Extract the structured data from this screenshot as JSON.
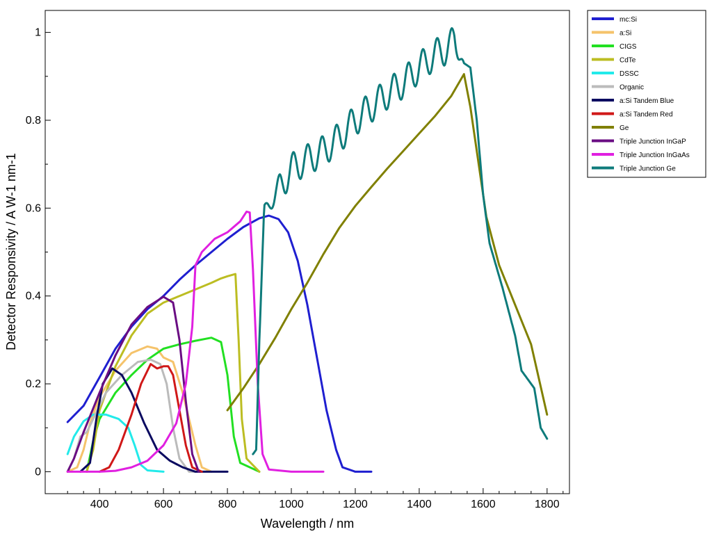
{
  "chart_data": {
    "type": "line",
    "title": "",
    "xlabel": "Wavelength / nm",
    "ylabel": "Detector Responsivity / A W-1 nm-1",
    "xlim": [
      230,
      1870
    ],
    "ylim": [
      -0.05,
      1.05
    ],
    "xticks": [
      {
        "value": 400,
        "label": "400"
      },
      {
        "value": 600,
        "label": "600"
      },
      {
        "value": 800,
        "label": "800"
      },
      {
        "value": 1000,
        "label": "1000"
      },
      {
        "value": 1200,
        "label": "1200"
      },
      {
        "value": 1400,
        "label": "1400"
      },
      {
        "value": 1600,
        "label": "1600"
      },
      {
        "value": 1800,
        "label": "1800"
      }
    ],
    "xminor": [
      300,
      350,
      450,
      500,
      550,
      650,
      700,
      750,
      850,
      900,
      950,
      1050,
      1100,
      1150,
      1250,
      1300,
      1350,
      1450,
      1500,
      1550,
      1650,
      1700,
      1750,
      1850
    ],
    "yticks": [
      {
        "value": 0,
        "label": "0"
      },
      {
        "value": 0.2,
        "label": "0.2"
      },
      {
        "value": 0.4,
        "label": "0.4"
      },
      {
        "value": 0.6,
        "label": "0.6"
      },
      {
        "value": 0.8,
        "label": "0.8"
      },
      {
        "value": 1,
        "label": "1"
      }
    ],
    "yminor": [
      0.1,
      0.3,
      0.5,
      0.7,
      0.9
    ],
    "grid": false,
    "legend_position": "outside-right-top",
    "series": [
      {
        "name": "mc:Si",
        "color": "#1f1fd0",
        "points": [
          [
            300,
            0.113
          ],
          [
            350,
            0.15
          ],
          [
            400,
            0.215
          ],
          [
            450,
            0.28
          ],
          [
            500,
            0.33
          ],
          [
            550,
            0.37
          ],
          [
            600,
            0.4
          ],
          [
            650,
            0.437
          ],
          [
            700,
            0.47
          ],
          [
            750,
            0.5
          ],
          [
            800,
            0.53
          ],
          [
            850,
            0.557
          ],
          [
            900,
            0.577
          ],
          [
            930,
            0.583
          ],
          [
            960,
            0.575
          ],
          [
            990,
            0.545
          ],
          [
            1020,
            0.48
          ],
          [
            1050,
            0.38
          ],
          [
            1080,
            0.26
          ],
          [
            1110,
            0.14
          ],
          [
            1140,
            0.05
          ],
          [
            1160,
            0.01
          ],
          [
            1200,
            0.0
          ],
          [
            1250,
            0.0
          ]
        ]
      },
      {
        "name": "a:Si",
        "color": "#f5c36b",
        "points": [
          [
            300,
            0.0
          ],
          [
            330,
            0.01
          ],
          [
            350,
            0.05
          ],
          [
            370,
            0.11
          ],
          [
            400,
            0.17
          ],
          [
            450,
            0.23
          ],
          [
            500,
            0.27
          ],
          [
            550,
            0.285
          ],
          [
            580,
            0.28
          ],
          [
            600,
            0.26
          ],
          [
            630,
            0.25
          ],
          [
            660,
            0.18
          ],
          [
            700,
            0.06
          ],
          [
            720,
            0.01
          ],
          [
            750,
            0.0
          ]
        ]
      },
      {
        "name": "CIGS",
        "color": "#22e022",
        "points": [
          [
            360,
            0.0
          ],
          [
            380,
            0.07
          ],
          [
            400,
            0.12
          ],
          [
            450,
            0.18
          ],
          [
            500,
            0.22
          ],
          [
            550,
            0.255
          ],
          [
            600,
            0.28
          ],
          [
            650,
            0.29
          ],
          [
            700,
            0.298
          ],
          [
            750,
            0.305
          ],
          [
            780,
            0.295
          ],
          [
            800,
            0.22
          ],
          [
            820,
            0.08
          ],
          [
            840,
            0.02
          ],
          [
            900,
            0.0
          ]
        ]
      },
      {
        "name": "CdTe",
        "color": "#bcbd22",
        "points": [
          [
            360,
            0.0
          ],
          [
            380,
            0.05
          ],
          [
            400,
            0.14
          ],
          [
            450,
            0.24
          ],
          [
            500,
            0.31
          ],
          [
            550,
            0.36
          ],
          [
            600,
            0.385
          ],
          [
            650,
            0.4
          ],
          [
            700,
            0.415
          ],
          [
            750,
            0.43
          ],
          [
            780,
            0.44
          ],
          [
            800,
            0.445
          ],
          [
            825,
            0.45
          ],
          [
            835,
            0.3
          ],
          [
            845,
            0.12
          ],
          [
            860,
            0.03
          ],
          [
            900,
            0.0
          ]
        ]
      },
      {
        "name": "DSSC",
        "color": "#22eaea",
        "points": [
          [
            300,
            0.04
          ],
          [
            320,
            0.08
          ],
          [
            350,
            0.115
          ],
          [
            380,
            0.13
          ],
          [
            420,
            0.13
          ],
          [
            460,
            0.12
          ],
          [
            490,
            0.1
          ],
          [
            510,
            0.06
          ],
          [
            530,
            0.015
          ],
          [
            550,
            0.003
          ],
          [
            600,
            0.0
          ]
        ]
      },
      {
        "name": "Organic",
        "color": "#bbbbbb",
        "points": [
          [
            300,
            0.0
          ],
          [
            320,
            0.03
          ],
          [
            340,
            0.08
          ],
          [
            360,
            0.09
          ],
          [
            380,
            0.12
          ],
          [
            420,
            0.18
          ],
          [
            470,
            0.22
          ],
          [
            520,
            0.25
          ],
          [
            560,
            0.255
          ],
          [
            590,
            0.245
          ],
          [
            610,
            0.2
          ],
          [
            630,
            0.1
          ],
          [
            650,
            0.03
          ],
          [
            680,
            0.0
          ],
          [
            700,
            0.0
          ]
        ]
      },
      {
        "name": "a:Si Tandem Blue",
        "color": "#0a0a60",
        "points": [
          [
            340,
            0.0
          ],
          [
            370,
            0.02
          ],
          [
            390,
            0.12
          ],
          [
            410,
            0.2
          ],
          [
            440,
            0.235
          ],
          [
            470,
            0.22
          ],
          [
            500,
            0.18
          ],
          [
            540,
            0.11
          ],
          [
            580,
            0.05
          ],
          [
            620,
            0.025
          ],
          [
            660,
            0.01
          ],
          [
            700,
            0.0
          ],
          [
            800,
            0.0
          ]
        ]
      },
      {
        "name": "a:Si Tandem Red",
        "color": "#d01818",
        "points": [
          [
            400,
            0.0
          ],
          [
            430,
            0.01
          ],
          [
            460,
            0.05
          ],
          [
            500,
            0.13
          ],
          [
            530,
            0.2
          ],
          [
            560,
            0.245
          ],
          [
            580,
            0.235
          ],
          [
            600,
            0.24
          ],
          [
            615,
            0.24
          ],
          [
            630,
            0.22
          ],
          [
            650,
            0.14
          ],
          [
            670,
            0.06
          ],
          [
            690,
            0.01
          ],
          [
            720,
            0.0
          ]
        ]
      },
      {
        "name": "Ge",
        "color": "#808000",
        "points": [
          [
            800,
            0.14
          ],
          [
            850,
            0.19
          ],
          [
            900,
            0.245
          ],
          [
            950,
            0.305
          ],
          [
            1000,
            0.37
          ],
          [
            1050,
            0.43
          ],
          [
            1100,
            0.495
          ],
          [
            1150,
            0.555
          ],
          [
            1200,
            0.605
          ],
          [
            1250,
            0.648
          ],
          [
            1300,
            0.69
          ],
          [
            1350,
            0.73
          ],
          [
            1400,
            0.77
          ],
          [
            1450,
            0.81
          ],
          [
            1500,
            0.855
          ],
          [
            1540,
            0.905
          ],
          [
            1560,
            0.83
          ],
          [
            1580,
            0.73
          ],
          [
            1610,
            0.58
          ],
          [
            1650,
            0.47
          ],
          [
            1700,
            0.38
          ],
          [
            1750,
            0.29
          ],
          [
            1800,
            0.13
          ]
        ]
      },
      {
        "name": "Triple Junction InGaP",
        "color": "#6a0d83",
        "points": [
          [
            300,
            0.0
          ],
          [
            320,
            0.03
          ],
          [
            350,
            0.09
          ],
          [
            400,
            0.18
          ],
          [
            450,
            0.265
          ],
          [
            500,
            0.335
          ],
          [
            550,
            0.375
          ],
          [
            600,
            0.398
          ],
          [
            630,
            0.385
          ],
          [
            650,
            0.3
          ],
          [
            670,
            0.16
          ],
          [
            690,
            0.04
          ],
          [
            710,
            0.0
          ]
        ]
      },
      {
        "name": "Triple Junction InGaAs",
        "color": "#e020e0",
        "points": [
          [
            300,
            0.0
          ],
          [
            400,
            0.0
          ],
          [
            450,
            0.002
          ],
          [
            500,
            0.01
          ],
          [
            550,
            0.025
          ],
          [
            600,
            0.06
          ],
          [
            640,
            0.11
          ],
          [
            670,
            0.2
          ],
          [
            690,
            0.33
          ],
          [
            700,
            0.47
          ],
          [
            720,
            0.5
          ],
          [
            760,
            0.53
          ],
          [
            800,
            0.545
          ],
          [
            840,
            0.57
          ],
          [
            860,
            0.592
          ],
          [
            870,
            0.59
          ],
          [
            880,
            0.46
          ],
          [
            895,
            0.2
          ],
          [
            910,
            0.04
          ],
          [
            930,
            0.005
          ],
          [
            1000,
            0.0
          ],
          [
            1100,
            0.0
          ]
        ]
      },
      {
        "name": "Triple Junction Ge",
        "color": "#0e7b7b",
        "points": [
          [
            880,
            0.04
          ],
          [
            890,
            0.05
          ],
          [
            900,
            0.3
          ],
          [
            915,
            0.6
          ],
          [
            930,
            0.61
          ],
          [
            960,
            0.64
          ],
          [
            1000,
            0.69
          ],
          [
            1050,
            0.71
          ],
          [
            1100,
            0.73
          ],
          [
            1150,
            0.76
          ],
          [
            1200,
            0.8
          ],
          [
            1250,
            0.83
          ],
          [
            1300,
            0.86
          ],
          [
            1350,
            0.885
          ],
          [
            1400,
            0.92
          ],
          [
            1450,
            0.95
          ],
          [
            1480,
            0.96
          ],
          [
            1510,
            0.98
          ],
          [
            1540,
            0.93
          ],
          [
            1560,
            0.92
          ],
          [
            1580,
            0.8
          ],
          [
            1600,
            0.63
          ],
          [
            1620,
            0.52
          ],
          [
            1660,
            0.42
          ],
          [
            1700,
            0.31
          ],
          [
            1720,
            0.23
          ],
          [
            1760,
            0.19
          ],
          [
            1780,
            0.1
          ],
          [
            1800,
            0.075
          ]
        ],
        "oscillation": {
          "from": 905,
          "to": 1540,
          "period": 45,
          "amplitude": 0.035
        }
      }
    ]
  }
}
